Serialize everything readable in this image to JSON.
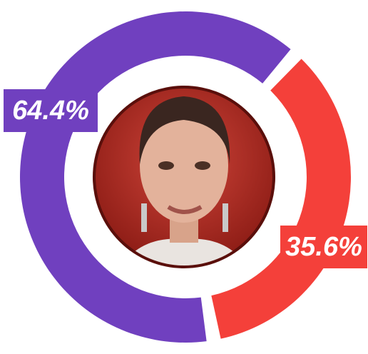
{
  "chart_data": {
    "type": "donut",
    "values": [
      64.4,
      35.6
    ],
    "value_labels": [
      "64.4%",
      "35.6%"
    ],
    "colors": [
      "#7040bf",
      "#f4403a"
    ]
  }
}
